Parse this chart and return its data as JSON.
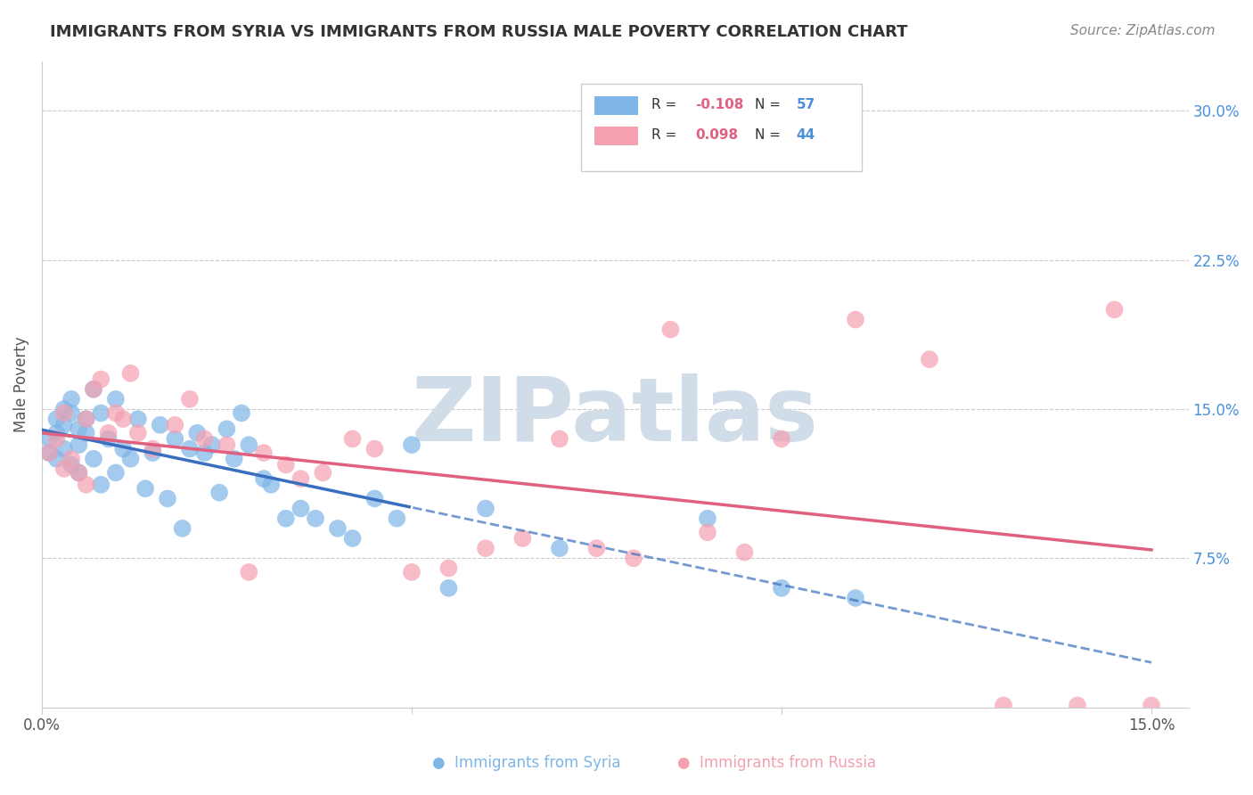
{
  "title": "IMMIGRANTS FROM SYRIA VS IMMIGRANTS FROM RUSSIA MALE POVERTY CORRELATION CHART",
  "source": "Source: ZipAtlas.com",
  "ylabel": "Male Poverty",
  "xlim": [
    0.0,
    0.155
  ],
  "ylim": [
    0.0,
    0.325
  ],
  "xticks": [
    0.0,
    0.05,
    0.1,
    0.15
  ],
  "xtick_labels": [
    "0.0%",
    "",
    "",
    "15.0%"
  ],
  "ytick_labels_right": [
    "7.5%",
    "15.0%",
    "22.5%",
    "30.0%"
  ],
  "yticks_right": [
    0.075,
    0.15,
    0.225,
    0.3
  ],
  "syria_R": "-0.108",
  "syria_N": "57",
  "russia_R": "0.098",
  "russia_N": "44",
  "syria_color": "#7EB6E8",
  "russia_color": "#F4A0B0",
  "trend_syria_color": "#3A6FBF",
  "trend_russia_color": "#E06080",
  "background_color": "#ffffff",
  "grid_color": "#cccccc",
  "watermark_text": "ZIPatlas",
  "watermark_color": "#d0dce8",
  "legend_R_color": "#E06080",
  "legend_N_color": "#4A90D9"
}
